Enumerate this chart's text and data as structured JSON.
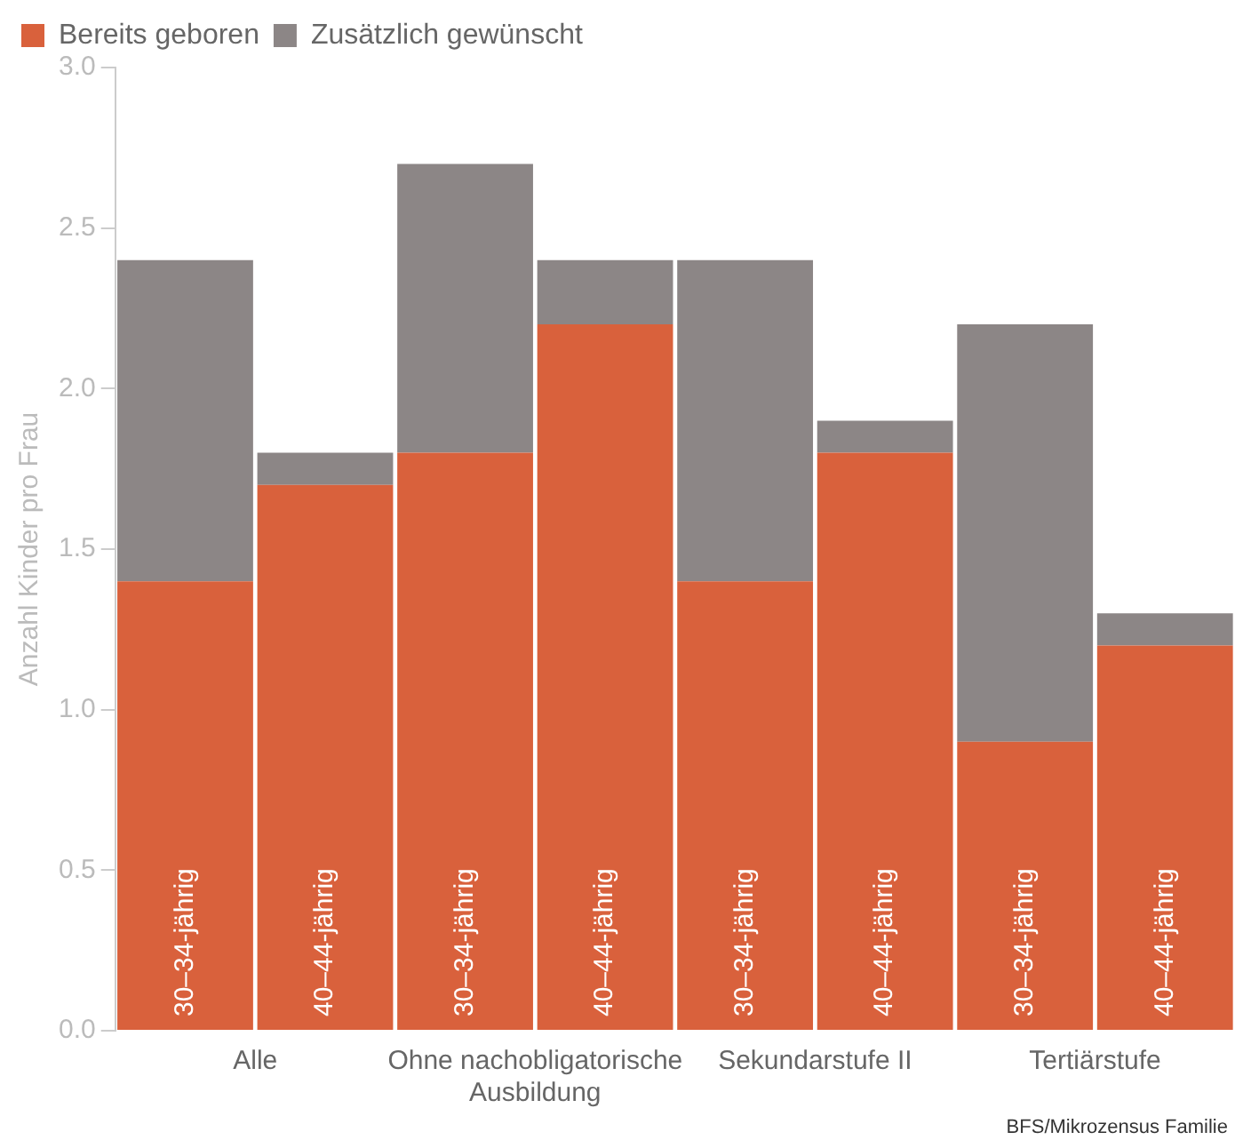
{
  "chart_data": {
    "type": "bar",
    "stacked": true,
    "ylabel": "Anzahl Kinder pro Frau",
    "categories": [
      "30–34-jährig",
      "40–44-jährig",
      "30–34-jährig",
      "40–44-jährig",
      "30–34-jährig",
      "40–44-jährig",
      "30–34-jährig",
      "40–44-jährig"
    ],
    "series": [
      {
        "name": "Bereits geboren",
        "color": "#d9613c",
        "values": [
          1.4,
          1.7,
          1.8,
          2.2,
          1.4,
          1.8,
          0.9,
          1.2
        ]
      },
      {
        "name": "Zusätzlich gewünscht",
        "color": "#8c8686",
        "values": [
          1.0,
          0.1,
          0.9,
          0.2,
          1.0,
          0.1,
          1.3,
          0.1
        ]
      }
    ],
    "ylim": [
      0,
      3
    ],
    "yticks": [
      {
        "value": 0,
        "label": "0.0"
      },
      {
        "value": 0.5,
        "label": "0.5"
      },
      {
        "value": 1,
        "label": "1.0"
      },
      {
        "value": 1.5,
        "label": "1.5"
      },
      {
        "value": 2,
        "label": "2.0"
      },
      {
        "value": 2.5,
        "label": "2.5"
      },
      {
        "value": 3,
        "label": "3.0"
      }
    ],
    "annotations": [
      "Alle",
      "Ohne nachobligatorische Ausbildung",
      "Sekundarstufe II",
      "Tertiärstufe",
      "BFS/Mikrozensus Familie"
    ],
    "grid": false,
    "legend": "top left"
  }
}
